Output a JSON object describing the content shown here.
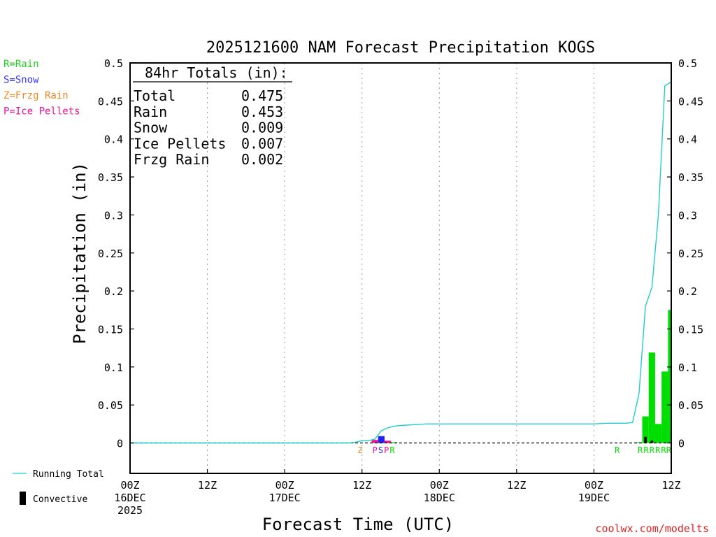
{
  "chart_data": {
    "type": "bar",
    "title": "2025121600 NAM Forecast Precipitation KOGS",
    "xlabel": "Forecast Time (UTC)",
    "ylabel": "Precipitation (in)",
    "ylim": [
      -0.04,
      0.5
    ],
    "xlim_hours": [
      0,
      84
    ],
    "yticks": [
      "0",
      "0.05",
      "0.1",
      "0.15",
      "0.2",
      "0.25",
      "0.3",
      "0.35",
      "0.4",
      "0.45",
      "0.5"
    ],
    "ytick_values": [
      0,
      0.05,
      0.1,
      0.15,
      0.2,
      0.25,
      0.3,
      0.35,
      0.4,
      0.45,
      0.5
    ],
    "xticks": [
      {
        "hour": 0,
        "lines": [
          "00Z",
          "16DEC",
          "2025"
        ]
      },
      {
        "hour": 12,
        "lines": [
          "12Z"
        ]
      },
      {
        "hour": 24,
        "lines": [
          "00Z",
          "17DEC"
        ]
      },
      {
        "hour": 36,
        "lines": [
          "12Z"
        ]
      },
      {
        "hour": 48,
        "lines": [
          "00Z",
          "18DEC"
        ]
      },
      {
        "hour": 60,
        "lines": [
          "12Z"
        ]
      },
      {
        "hour": 72,
        "lines": [
          "00Z",
          "19DEC"
        ]
      },
      {
        "hour": 84,
        "lines": [
          "12Z"
        ]
      }
    ],
    "vgrid_hours": [
      12,
      24,
      36,
      48,
      60,
      72
    ],
    "ptype_legend": [
      {
        "text": "R=Rain",
        "color": "#22cc22"
      },
      {
        "text": "S=Snow",
        "color": "#3333ff"
      },
      {
        "text": "Z=Frzg Rain",
        "color": "#ee8822"
      },
      {
        "text": "P=Ice Pellets",
        "color": "#ee1199"
      }
    ],
    "totals_header": "84hr Totals (in):",
    "totals": [
      {
        "label": "Total",
        "value": "0.475"
      },
      {
        "label": "Rain",
        "value": "0.453"
      },
      {
        "label": "Snow",
        "value": "0.009"
      },
      {
        "label": "Ice Pellets",
        "value": "0.007"
      },
      {
        "label": "Frzg Rain",
        "value": "0.002"
      }
    ],
    "running_total_label": "Running Total",
    "convective_label": "Convective",
    "colors": {
      "rain": "#00dd00",
      "snow": "#2222ee",
      "ice": "#ee1199",
      "frzg": "#ee8822",
      "running": "#22cccc",
      "convective": "#000000"
    },
    "bars": [
      {
        "start": 37.5,
        "end": 38.5,
        "value": 0.004,
        "type": "ice"
      },
      {
        "start": 38.5,
        "end": 39.5,
        "value": 0.009,
        "type": "snow"
      },
      {
        "start": 39.5,
        "end": 40.5,
        "value": 0.003,
        "type": "ice"
      },
      {
        "start": 40.5,
        "end": 41.5,
        "value": 0.001,
        "type": "rain"
      },
      {
        "start": 78.5,
        "end": 79.5,
        "value": 0.001,
        "type": "rain"
      },
      {
        "start": 79.5,
        "end": 80.5,
        "value": 0.035,
        "type": "rain"
      },
      {
        "start": 80.5,
        "end": 81.5,
        "value": 0.119,
        "type": "rain"
      },
      {
        "start": 81.5,
        "end": 82.5,
        "value": 0.025,
        "type": "rain"
      },
      {
        "start": 82.5,
        "end": 83.5,
        "value": 0.094,
        "type": "rain"
      },
      {
        "start": 83.5,
        "end": 84.0,
        "value": 0.175,
        "type": "rain"
      }
    ],
    "convective_bars": [
      {
        "start": 79.8,
        "end": 80.2,
        "value": 0.008
      },
      {
        "start": 80.8,
        "end": 81.2,
        "value": 0.003
      }
    ],
    "running_total": {
      "x": [
        0,
        34,
        35,
        36,
        37,
        38,
        39,
        40,
        41,
        42,
        44,
        46,
        48,
        60,
        72,
        74,
        76,
        77,
        78,
        79,
        80,
        81,
        82,
        83,
        84
      ],
      "y": [
        0,
        0,
        0.001,
        0.003,
        0.003,
        0.005,
        0.016,
        0.02,
        0.022,
        0.023,
        0.024,
        0.025,
        0.025,
        0.025,
        0.025,
        0.026,
        0.026,
        0.026,
        0.027,
        0.065,
        0.18,
        0.205,
        0.3,
        0.47,
        0.475
      ]
    },
    "ptype_markers": [
      {
        "hour": 35.7,
        "text": "Z",
        "type": "frzg"
      },
      {
        "hour": 38.0,
        "text": "P",
        "type": "ice"
      },
      {
        "hour": 38.9,
        "text": "S",
        "type": "snow"
      },
      {
        "hour": 39.8,
        "text": "P",
        "type": "ice"
      },
      {
        "hour": 40.7,
        "text": "R",
        "type": "rain"
      },
      {
        "hour": 75.6,
        "text": "R",
        "type": "rain"
      },
      {
        "hour": 79.2,
        "text": "R",
        "type": "rain"
      },
      {
        "hour": 80.1,
        "text": "R",
        "type": "rain"
      },
      {
        "hour": 81.0,
        "text": "R",
        "type": "rain"
      },
      {
        "hour": 81.9,
        "text": "R",
        "type": "rain"
      },
      {
        "hour": 82.8,
        "text": "R",
        "type": "rain"
      },
      {
        "hour": 83.6,
        "text": "R",
        "type": "rain"
      }
    ],
    "grid": true,
    "legend_position": "left"
  },
  "footer": {
    "credit": "coolwx.com/modelts"
  }
}
